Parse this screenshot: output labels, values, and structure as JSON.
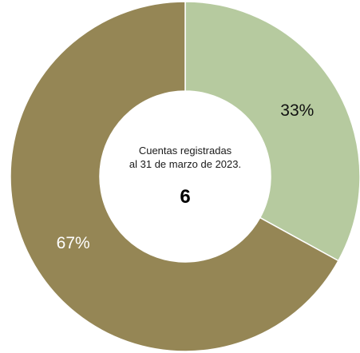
{
  "chart_data": {
    "type": "pie",
    "variant": "donut",
    "categories": [
      "",
      ""
    ],
    "values": [
      33,
      67
    ],
    "labels": [
      "33%",
      "67%"
    ],
    "colors": [
      "#b6ca9f",
      "#958655"
    ],
    "label_colors": [
      "#111111",
      "#ffffff"
    ],
    "center": {
      "line1": "Cuentas registradas",
      "line2": "al 31 de marzo de 2023.",
      "total": "6"
    },
    "title": "",
    "legend": "none"
  }
}
